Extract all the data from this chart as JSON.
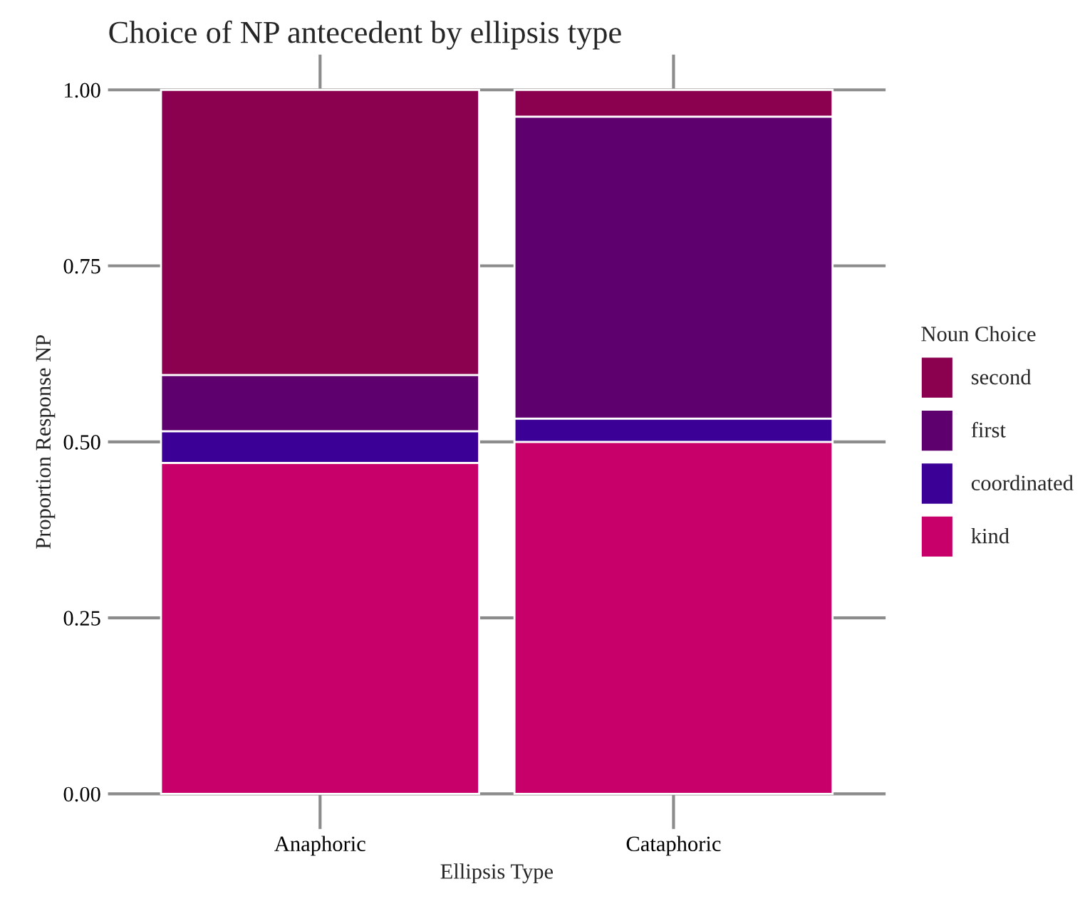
{
  "chart_data": {
    "type": "bar",
    "title": "Choice of NP antecedent by ellipsis type",
    "xlabel": "Ellipsis Type",
    "ylabel": "Proportion Response NP",
    "legend_title": "Noun Choice",
    "categories": [
      "Anaphoric",
      "Cataphoric"
    ],
    "stacked": true,
    "series": [
      {
        "name": "kind",
        "color": "#c8006a",
        "values": [
          0.47,
          0.5
        ]
      },
      {
        "name": "coordinated",
        "color": "#3b0095",
        "values": [
          0.045,
          0.033
        ]
      },
      {
        "name": "first",
        "color": "#5f006f",
        "values": [
          0.08,
          0.429
        ]
      },
      {
        "name": "second",
        "color": "#8b004f",
        "values": [
          0.405,
          0.038
        ]
      }
    ],
    "ylim": [
      -0.05,
      1.05
    ],
    "yticks": [
      {
        "value": 0,
        "label": "0.00"
      },
      {
        "value": 0.25,
        "label": "0.25"
      },
      {
        "value": 0.5,
        "label": "0.50"
      },
      {
        "value": 0.75,
        "label": "0.75"
      },
      {
        "value": 1,
        "label": "1.00"
      }
    ],
    "grid": true,
    "legend": "right"
  }
}
